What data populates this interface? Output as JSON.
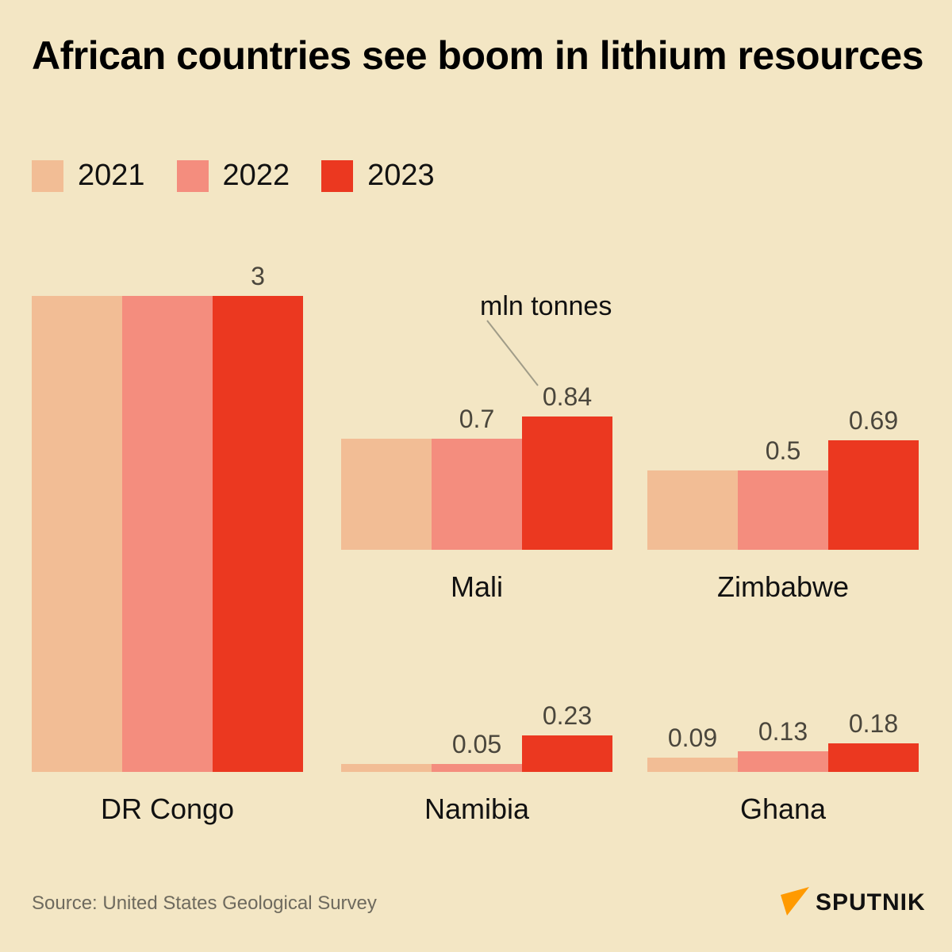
{
  "title": "African countries see boom in lithium resources",
  "source": "Source: United States Geological Survey",
  "logo": {
    "icon": "sputnik-arrow-icon",
    "text": "SPUTNIK",
    "color": "#ff9a00"
  },
  "chart_data": {
    "type": "bar",
    "title": "African countries see boom in lithium resources",
    "unit_annotation": "mln tonnes",
    "legend": [
      "2021",
      "2022",
      "2023"
    ],
    "legend_placement": "top-left",
    "colors": [
      "#f2bd95",
      "#f48d7e",
      "#eb3820"
    ],
    "categories": [
      "DR Congo",
      "Mali",
      "Zimbabwe",
      "Namibia",
      "Ghana"
    ],
    "series": [
      {
        "name": "2021",
        "values": [
          3,
          0.7,
          0.5,
          0.05,
          0.09
        ]
      },
      {
        "name": "2022",
        "values": [
          3,
          0.7,
          0.5,
          0.05,
          0.13
        ]
      },
      {
        "name": "2023",
        "values": [
          3,
          0.84,
          0.69,
          0.23,
          0.18
        ]
      }
    ],
    "data_labels": {
      "DR Congo": [
        "",
        "",
        "3"
      ],
      "Mali": [
        "",
        "0.7",
        "0.84"
      ],
      "Zimbabwe": [
        "",
        "0.5",
        "0.69"
      ],
      "Namibia": [
        "",
        "0.05",
        "0.23"
      ],
      "Ghana": [
        "0.09",
        "0.13",
        "0.18"
      ]
    },
    "xlabel": "",
    "ylabel": "",
    "ylim": [
      0,
      3
    ],
    "grid": false
  }
}
